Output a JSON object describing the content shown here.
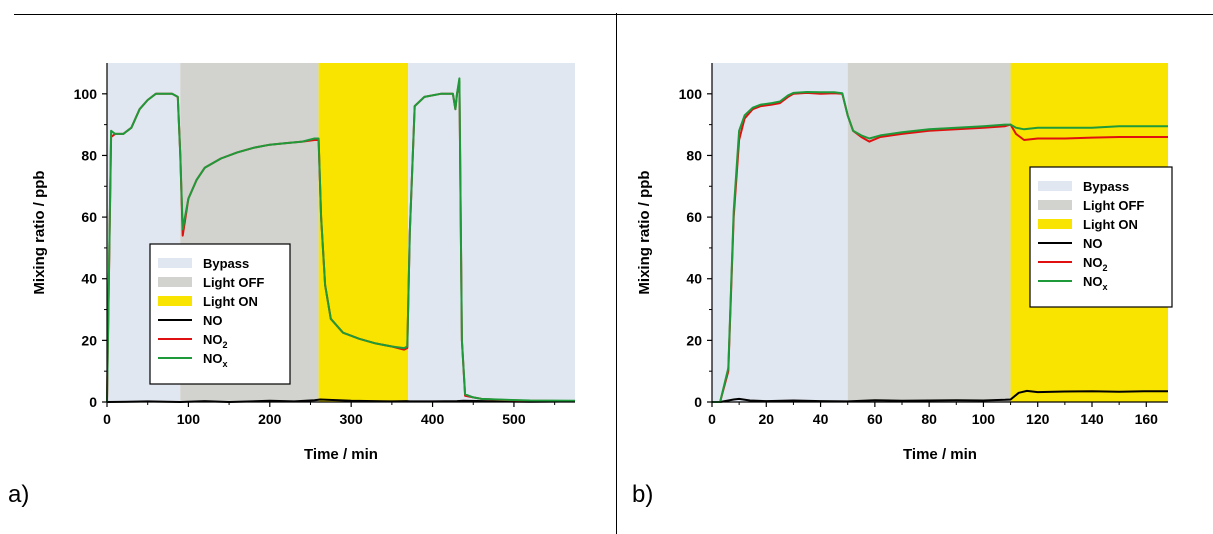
{
  "figure": {
    "panels": [
      {
        "id": "a",
        "letter": "a)"
      },
      {
        "id": "b",
        "letter": "b)"
      }
    ]
  },
  "chart_data": [
    {
      "panel": "a",
      "type": "line",
      "xlabel": "Time / min",
      "ylabel": "Mixing ratio / ppb",
      "xlim": [
        0,
        575
      ],
      "ylim": [
        0,
        110
      ],
      "xticks": [
        0,
        100,
        200,
        300,
        400,
        500
      ],
      "yticks": [
        0,
        20,
        40,
        60,
        80,
        100
      ],
      "grid": false,
      "legend_placement": "center-left",
      "legend": [
        {
          "label": "Bypass",
          "kind": "patch",
          "color": "#e1e7f0"
        },
        {
          "label": "Light OFF",
          "kind": "patch",
          "color": "#d2d2ce"
        },
        {
          "label": "Light ON",
          "kind": "patch",
          "color": "#f9e400"
        },
        {
          "label": "NO",
          "kind": "line",
          "color": "#000000"
        },
        {
          "label": "NO",
          "sub": "2",
          "kind": "line",
          "color": "#e01010"
        },
        {
          "label": "NO",
          "sub": "x",
          "kind": "line",
          "color": "#1f9a3a"
        }
      ],
      "regions": [
        {
          "label": "Bypass",
          "x0": 0,
          "x1": 90,
          "color": "#e1e7f0"
        },
        {
          "label": "Light OFF",
          "x0": 90,
          "x1": 260,
          "color": "#d2d2ce"
        },
        {
          "label": "Light ON",
          "x0": 260,
          "x1": 370,
          "color": "#f9e400"
        },
        {
          "label": "Bypass",
          "x0": 370,
          "x1": 575,
          "color": "#e1e7f0"
        }
      ],
      "series": [
        {
          "name": "NO",
          "color": "#000000",
          "x": [
            0,
            50,
            90,
            120,
            150,
            200,
            230,
            255,
            262,
            300,
            350,
            368,
            372,
            400,
            430,
            438,
            480,
            520,
            575
          ],
          "y": [
            0,
            0.2,
            0,
            0.3,
            0,
            0.4,
            0.2,
            0.6,
            0.8,
            0.4,
            0.2,
            0.3,
            0.2,
            0.2,
            0.3,
            0.4,
            0.2,
            0.1,
            0.2
          ]
        },
        {
          "name": "NO2",
          "color": "#e01010",
          "x": [
            0,
            5,
            10,
            20,
            30,
            40,
            50,
            60,
            70,
            80,
            87,
            90,
            93,
            100,
            110,
            120,
            140,
            160,
            180,
            200,
            220,
            240,
            255,
            260,
            263,
            268,
            275,
            290,
            310,
            330,
            350,
            365,
            369,
            372,
            378,
            390,
            410,
            425,
            428,
            430,
            433,
            436,
            440,
            450,
            460,
            480,
            520,
            575
          ],
          "y": [
            0,
            86,
            87,
            87,
            89,
            95,
            98,
            100,
            100,
            100,
            99,
            80,
            54,
            66,
            72,
            76,
            79,
            81,
            82.5,
            83.5,
            84,
            84.5,
            85,
            85,
            60,
            38,
            27,
            22.5,
            20.5,
            19,
            18,
            17,
            17.5,
            55,
            96,
            99,
            100,
            100,
            95,
            100,
            104,
            20,
            2,
            1.5,
            1,
            0.7,
            0.4,
            0.3
          ]
        },
        {
          "name": "NOx",
          "color": "#1f9a3a",
          "x": [
            0,
            5,
            10,
            20,
            30,
            40,
            50,
            60,
            70,
            80,
            87,
            90,
            93,
            100,
            110,
            120,
            140,
            160,
            180,
            200,
            220,
            240,
            255,
            260,
            263,
            268,
            275,
            290,
            310,
            330,
            350,
            365,
            369,
            372,
            378,
            390,
            410,
            425,
            428,
            430,
            433,
            436,
            440,
            450,
            460,
            480,
            520,
            575
          ],
          "y": [
            0,
            88,
            87,
            87,
            89,
            95,
            98,
            100,
            100,
            100,
            99,
            80,
            56,
            66,
            72,
            76,
            79,
            81,
            82.5,
            83.5,
            84,
            84.5,
            85.5,
            85.5,
            60,
            38,
            27,
            22.5,
            20.5,
            19,
            18,
            17.5,
            18,
            55,
            96,
            99,
            100,
            100,
            95,
            100,
            105,
            20,
            2.5,
            1.5,
            1,
            0.8,
            0.5,
            0.4
          ]
        }
      ]
    },
    {
      "panel": "b",
      "type": "line",
      "xlabel": "Time / min",
      "ylabel": "Mixing ratio / ppb",
      "xlim": [
        0,
        168
      ],
      "ylim": [
        0,
        110
      ],
      "xticks": [
        0,
        20,
        40,
        60,
        80,
        100,
        120,
        140,
        160
      ],
      "yticks": [
        0,
        20,
        40,
        60,
        80,
        100
      ],
      "grid": false,
      "legend_placement": "right",
      "legend": [
        {
          "label": "Bypass",
          "kind": "patch",
          "color": "#e1e7f0"
        },
        {
          "label": "Light OFF",
          "kind": "patch",
          "color": "#d2d2ce"
        },
        {
          "label": "Light ON",
          "kind": "patch",
          "color": "#f9e400"
        },
        {
          "label": "NO",
          "kind": "line",
          "color": "#000000"
        },
        {
          "label": "NO",
          "sub": "2",
          "kind": "line",
          "color": "#e01010"
        },
        {
          "label": "NO",
          "sub": "x",
          "kind": "line",
          "color": "#1f9a3a"
        }
      ],
      "regions": [
        {
          "label": "Bypass",
          "x0": 0,
          "x1": 50,
          "color": "#e1e7f0"
        },
        {
          "label": "Light OFF",
          "x0": 50,
          "x1": 110,
          "color": "#d2d2ce"
        },
        {
          "label": "Light ON",
          "x0": 110,
          "x1": 168,
          "color": "#f9e400"
        }
      ],
      "series": [
        {
          "name": "NO",
          "color": "#000000",
          "x": [
            0,
            3,
            8,
            10,
            14,
            20,
            30,
            40,
            50,
            60,
            70,
            80,
            90,
            100,
            108,
            110,
            113,
            116,
            120,
            130,
            140,
            150,
            160,
            168
          ],
          "y": [
            0,
            0,
            0.8,
            1,
            0.5,
            0.3,
            0.5,
            0.3,
            0.2,
            0.6,
            0.4,
            0.5,
            0.6,
            0.5,
            0.7,
            0.8,
            3,
            3.6,
            3.2,
            3.4,
            3.5,
            3.3,
            3.5,
            3.5
          ]
        },
        {
          "name": "NO2",
          "color": "#e01010",
          "x": [
            0,
            3,
            6,
            8,
            10,
            12,
            15,
            18,
            22,
            25,
            28,
            30,
            35,
            40,
            45,
            48,
            50,
            52,
            55,
            58,
            62,
            70,
            80,
            90,
            100,
            108,
            110,
            112,
            115,
            120,
            130,
            140,
            150,
            168
          ],
          "y": [
            0,
            0,
            10,
            60,
            85,
            92,
            95,
            96,
            96.5,
            97,
            99,
            100,
            100.3,
            100,
            100.2,
            100,
            93,
            88,
            86,
            84.5,
            86,
            87,
            88,
            88.5,
            89,
            89.5,
            90,
            87,
            85,
            85.5,
            85.5,
            85.8,
            86,
            86
          ]
        },
        {
          "name": "NOx",
          "color": "#1f9a3a",
          "x": [
            0,
            3,
            6,
            8,
            10,
            12,
            15,
            18,
            22,
            25,
            28,
            30,
            35,
            40,
            45,
            48,
            50,
            52,
            55,
            58,
            62,
            70,
            80,
            90,
            100,
            108,
            110,
            112,
            115,
            120,
            130,
            140,
            150,
            168
          ],
          "y": [
            0,
            0,
            11,
            62,
            88,
            93,
            95.5,
            96.5,
            97,
            97.5,
            99.5,
            100.3,
            100.6,
            100.5,
            100.5,
            100.2,
            93,
            88,
            86.5,
            85.5,
            86.5,
            87.5,
            88.5,
            89,
            89.5,
            90,
            90,
            89,
            88.5,
            89,
            89,
            89,
            89.5,
            89.5
          ]
        }
      ]
    }
  ]
}
